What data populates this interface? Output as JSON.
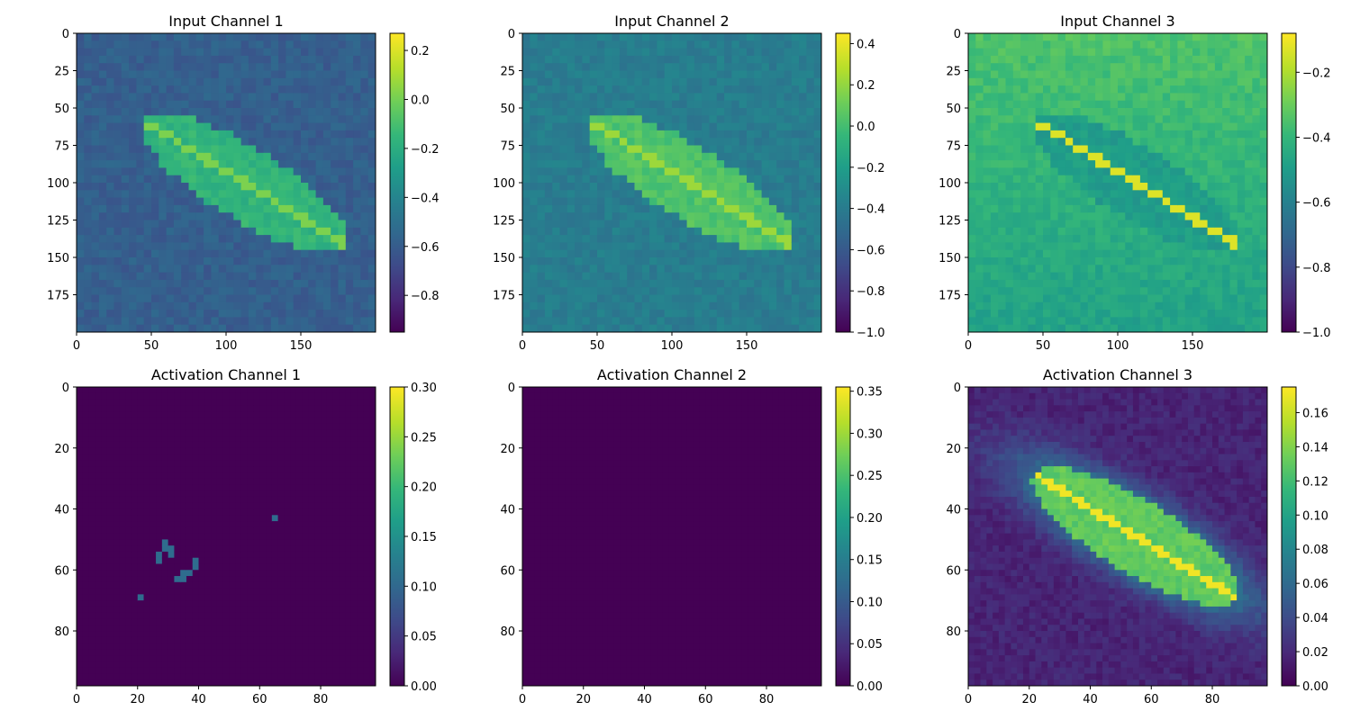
{
  "figure": {
    "panels": [
      {
        "title": "Input Channel 1",
        "image_extent": [
          0,
          200
        ],
        "ticks": [
          0,
          50,
          100,
          150
        ],
        "ytick_labels": [
          "0",
          "25",
          "50",
          "75",
          "100",
          "125",
          "150",
          "175"
        ],
        "colorbar": {
          "range": [
            -0.95,
            0.27
          ],
          "ticks": [
            "0.2",
            "0.0",
            "−0.2",
            "−0.4",
            "−0.6",
            "−0.8"
          ]
        },
        "intensity": {
          "background": 0.3,
          "leaf": 0.65,
          "vein": 0.8
        }
      },
      {
        "title": "Input Channel 2",
        "image_extent": [
          0,
          200
        ],
        "ticks": [
          0,
          50,
          100,
          150
        ],
        "ytick_labels": [
          "0",
          "25",
          "50",
          "75",
          "100",
          "125",
          "150",
          "175"
        ],
        "colorbar": {
          "range": [
            -1.0,
            0.45
          ],
          "ticks": [
            "0.4",
            "0.2",
            "0.0",
            "−0.2",
            "−0.4",
            "−0.6",
            "−0.8",
            "−1.0"
          ]
        },
        "intensity": {
          "background": 0.42,
          "leaf": 0.72,
          "vein": 0.85
        }
      },
      {
        "title": "Input Channel 3",
        "image_extent": [
          0,
          200
        ],
        "ticks": [
          0,
          50,
          100,
          150
        ],
        "ytick_labels": [
          "0",
          "25",
          "50",
          "75",
          "100",
          "125",
          "150",
          "175"
        ],
        "colorbar": {
          "range": [
            -1.0,
            -0.08
          ],
          "ticks": [
            "−0.2",
            "−0.4",
            "−0.6",
            "−0.8",
            "−1.0"
          ]
        },
        "intensity": {
          "background": 0.72,
          "leaf": 0.55,
          "vein": 0.95
        }
      },
      {
        "title": "Activation Channel 1",
        "image_extent": [
          0,
          98
        ],
        "ticks": [
          0,
          20,
          40,
          60,
          80
        ],
        "ytick_labels": [
          "0",
          "20",
          "40",
          "60",
          "80"
        ],
        "colorbar": {
          "range": [
            0.0,
            0.3
          ],
          "ticks": [
            "0.30",
            "0.25",
            "0.20",
            "0.15",
            "0.10",
            "0.05",
            "0.00"
          ]
        },
        "intensity": {
          "background": 0.0,
          "leaf": 0.0,
          "vein": 0.0
        }
      },
      {
        "title": "Activation Channel 2",
        "image_extent": [
          0,
          98
        ],
        "ticks": [
          0,
          20,
          40,
          60,
          80
        ],
        "ytick_labels": [
          "0",
          "20",
          "40",
          "60",
          "80"
        ],
        "colorbar": {
          "range": [
            0.0,
            0.355
          ],
          "ticks": [
            "0.35",
            "0.30",
            "0.25",
            "0.20",
            "0.15",
            "0.10",
            "0.05",
            "0.00"
          ]
        },
        "intensity": {
          "background": 0.0,
          "leaf": 0.0,
          "vein": 0.0
        }
      },
      {
        "title": "Activation Channel 3",
        "image_extent": [
          0,
          98
        ],
        "ticks": [
          0,
          20,
          40,
          60,
          80
        ],
        "ytick_labels": [
          "0",
          "20",
          "40",
          "60",
          "80"
        ],
        "colorbar": {
          "range": [
            0.0,
            0.175
          ],
          "ticks": [
            "0.16",
            "0.14",
            "0.12",
            "0.10",
            "0.08",
            "0.06",
            "0.04",
            "0.02",
            "0.00"
          ]
        },
        "intensity": {
          "background": 0.1,
          "leaf": 0.75,
          "vein": 0.98
        }
      }
    ]
  },
  "chart_data": [
    {
      "type": "heatmap",
      "title": "Input Channel 1",
      "xlim": [
        0,
        200
      ],
      "ylim": [
        200,
        0
      ],
      "colorbar_range": [
        -0.95,
        0.27
      ],
      "colormap": "viridis",
      "content": "leaf image"
    },
    {
      "type": "heatmap",
      "title": "Input Channel 2",
      "xlim": [
        0,
        200
      ],
      "ylim": [
        200,
        0
      ],
      "colorbar_range": [
        -1.0,
        0.45
      ],
      "colormap": "viridis",
      "content": "leaf image"
    },
    {
      "type": "heatmap",
      "title": "Input Channel 3",
      "xlim": [
        0,
        200
      ],
      "ylim": [
        200,
        0
      ],
      "colorbar_range": [
        -1.0,
        -0.08
      ],
      "colormap": "viridis",
      "content": "leaf image"
    },
    {
      "type": "heatmap",
      "title": "Activation Channel 1",
      "xlim": [
        0,
        98
      ],
      "ylim": [
        98,
        0
      ],
      "colorbar_range": [
        0.0,
        0.3
      ],
      "colormap": "viridis",
      "content": "mostly zero, a few weak activations near x 20-40, y 50-65"
    },
    {
      "type": "heatmap",
      "title": "Activation Channel 2",
      "xlim": [
        0,
        98
      ],
      "ylim": [
        98,
        0
      ],
      "colorbar_range": [
        0.0,
        0.355
      ],
      "colormap": "viridis",
      "content": "all zero"
    },
    {
      "type": "heatmap",
      "title": "Activation Channel 3",
      "xlim": [
        0,
        98
      ],
      "ylim": [
        98,
        0
      ],
      "colorbar_range": [
        0.0,
        0.175
      ],
      "colormap": "viridis",
      "content": "strong activation over leaf region"
    }
  ],
  "colors": {
    "viridis_stops": [
      "#440154",
      "#482878",
      "#3e4a89",
      "#31688e",
      "#26828e",
      "#1f9e89",
      "#35b779",
      "#6ece58",
      "#b5de2b",
      "#fde725"
    ]
  }
}
